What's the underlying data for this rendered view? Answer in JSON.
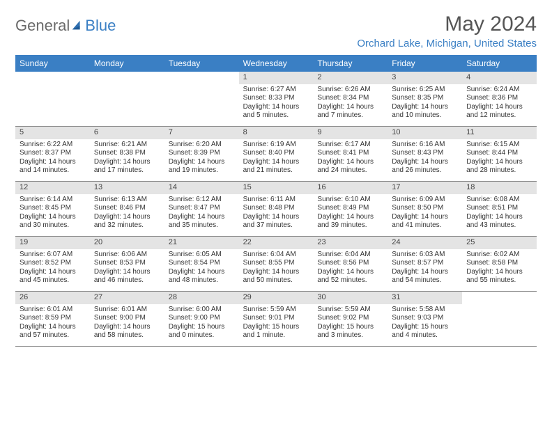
{
  "brand": {
    "part1": "General",
    "part2": "Blue"
  },
  "title": "May 2024",
  "location": "Orchard Lake, Michigan, United States",
  "colors": {
    "header_bg": "#3a7fc4",
    "header_text": "#ffffff",
    "daynum_bg": "#e4e4e4",
    "body_text": "#333333",
    "logo_gray": "#6a6a6a",
    "logo_blue": "#3a7fc4"
  },
  "day_names": [
    "Sunday",
    "Monday",
    "Tuesday",
    "Wednesday",
    "Thursday",
    "Friday",
    "Saturday"
  ],
  "weeks": [
    [
      {
        "empty": true
      },
      {
        "empty": true
      },
      {
        "empty": true
      },
      {
        "n": "1",
        "sr": "Sunrise: 6:27 AM",
        "ss": "Sunset: 8:33 PM",
        "dl": "Daylight: 14 hours and 5 minutes."
      },
      {
        "n": "2",
        "sr": "Sunrise: 6:26 AM",
        "ss": "Sunset: 8:34 PM",
        "dl": "Daylight: 14 hours and 7 minutes."
      },
      {
        "n": "3",
        "sr": "Sunrise: 6:25 AM",
        "ss": "Sunset: 8:35 PM",
        "dl": "Daylight: 14 hours and 10 minutes."
      },
      {
        "n": "4",
        "sr": "Sunrise: 6:24 AM",
        "ss": "Sunset: 8:36 PM",
        "dl": "Daylight: 14 hours and 12 minutes."
      }
    ],
    [
      {
        "n": "5",
        "sr": "Sunrise: 6:22 AM",
        "ss": "Sunset: 8:37 PM",
        "dl": "Daylight: 14 hours and 14 minutes."
      },
      {
        "n": "6",
        "sr": "Sunrise: 6:21 AM",
        "ss": "Sunset: 8:38 PM",
        "dl": "Daylight: 14 hours and 17 minutes."
      },
      {
        "n": "7",
        "sr": "Sunrise: 6:20 AM",
        "ss": "Sunset: 8:39 PM",
        "dl": "Daylight: 14 hours and 19 minutes."
      },
      {
        "n": "8",
        "sr": "Sunrise: 6:19 AM",
        "ss": "Sunset: 8:40 PM",
        "dl": "Daylight: 14 hours and 21 minutes."
      },
      {
        "n": "9",
        "sr": "Sunrise: 6:17 AM",
        "ss": "Sunset: 8:41 PM",
        "dl": "Daylight: 14 hours and 24 minutes."
      },
      {
        "n": "10",
        "sr": "Sunrise: 6:16 AM",
        "ss": "Sunset: 8:43 PM",
        "dl": "Daylight: 14 hours and 26 minutes."
      },
      {
        "n": "11",
        "sr": "Sunrise: 6:15 AM",
        "ss": "Sunset: 8:44 PM",
        "dl": "Daylight: 14 hours and 28 minutes."
      }
    ],
    [
      {
        "n": "12",
        "sr": "Sunrise: 6:14 AM",
        "ss": "Sunset: 8:45 PM",
        "dl": "Daylight: 14 hours and 30 minutes."
      },
      {
        "n": "13",
        "sr": "Sunrise: 6:13 AM",
        "ss": "Sunset: 8:46 PM",
        "dl": "Daylight: 14 hours and 32 minutes."
      },
      {
        "n": "14",
        "sr": "Sunrise: 6:12 AM",
        "ss": "Sunset: 8:47 PM",
        "dl": "Daylight: 14 hours and 35 minutes."
      },
      {
        "n": "15",
        "sr": "Sunrise: 6:11 AM",
        "ss": "Sunset: 8:48 PM",
        "dl": "Daylight: 14 hours and 37 minutes."
      },
      {
        "n": "16",
        "sr": "Sunrise: 6:10 AM",
        "ss": "Sunset: 8:49 PM",
        "dl": "Daylight: 14 hours and 39 minutes."
      },
      {
        "n": "17",
        "sr": "Sunrise: 6:09 AM",
        "ss": "Sunset: 8:50 PM",
        "dl": "Daylight: 14 hours and 41 minutes."
      },
      {
        "n": "18",
        "sr": "Sunrise: 6:08 AM",
        "ss": "Sunset: 8:51 PM",
        "dl": "Daylight: 14 hours and 43 minutes."
      }
    ],
    [
      {
        "n": "19",
        "sr": "Sunrise: 6:07 AM",
        "ss": "Sunset: 8:52 PM",
        "dl": "Daylight: 14 hours and 45 minutes."
      },
      {
        "n": "20",
        "sr": "Sunrise: 6:06 AM",
        "ss": "Sunset: 8:53 PM",
        "dl": "Daylight: 14 hours and 46 minutes."
      },
      {
        "n": "21",
        "sr": "Sunrise: 6:05 AM",
        "ss": "Sunset: 8:54 PM",
        "dl": "Daylight: 14 hours and 48 minutes."
      },
      {
        "n": "22",
        "sr": "Sunrise: 6:04 AM",
        "ss": "Sunset: 8:55 PM",
        "dl": "Daylight: 14 hours and 50 minutes."
      },
      {
        "n": "23",
        "sr": "Sunrise: 6:04 AM",
        "ss": "Sunset: 8:56 PM",
        "dl": "Daylight: 14 hours and 52 minutes."
      },
      {
        "n": "24",
        "sr": "Sunrise: 6:03 AM",
        "ss": "Sunset: 8:57 PM",
        "dl": "Daylight: 14 hours and 54 minutes."
      },
      {
        "n": "25",
        "sr": "Sunrise: 6:02 AM",
        "ss": "Sunset: 8:58 PM",
        "dl": "Daylight: 14 hours and 55 minutes."
      }
    ],
    [
      {
        "n": "26",
        "sr": "Sunrise: 6:01 AM",
        "ss": "Sunset: 8:59 PM",
        "dl": "Daylight: 14 hours and 57 minutes."
      },
      {
        "n": "27",
        "sr": "Sunrise: 6:01 AM",
        "ss": "Sunset: 9:00 PM",
        "dl": "Daylight: 14 hours and 58 minutes."
      },
      {
        "n": "28",
        "sr": "Sunrise: 6:00 AM",
        "ss": "Sunset: 9:00 PM",
        "dl": "Daylight: 15 hours and 0 minutes."
      },
      {
        "n": "29",
        "sr": "Sunrise: 5:59 AM",
        "ss": "Sunset: 9:01 PM",
        "dl": "Daylight: 15 hours and 1 minute."
      },
      {
        "n": "30",
        "sr": "Sunrise: 5:59 AM",
        "ss": "Sunset: 9:02 PM",
        "dl": "Daylight: 15 hours and 3 minutes."
      },
      {
        "n": "31",
        "sr": "Sunrise: 5:58 AM",
        "ss": "Sunset: 9:03 PM",
        "dl": "Daylight: 15 hours and 4 minutes."
      },
      {
        "empty": true
      }
    ]
  ]
}
